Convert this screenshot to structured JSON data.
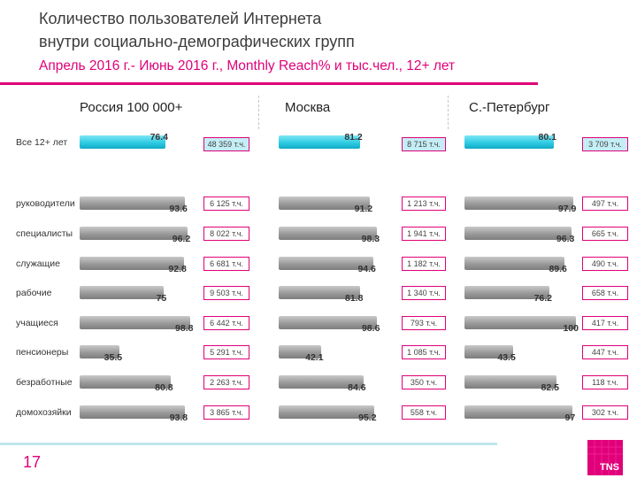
{
  "title_line1": "Количество пользователей Интернета",
  "title_line2": "внутри социально-демографических групп",
  "subtitle": "Апрель 2016 г.- Июнь 2016 г., Monthly Reach% и тыс.чел., 12+ лет",
  "page_number": "17",
  "logo_text": "TNS",
  "colors": {
    "accent": "#e0007a",
    "highlight_bar": "#2fcbe3",
    "bar": "#9a9a9a"
  },
  "chart_data": {
    "type": "bar",
    "categories": [
      "Все 12+ лет",
      "руководители",
      "специалисты",
      "служащие",
      "рабочие",
      "учащиеся",
      "пенсионеры",
      "безработные",
      "домохозяйки"
    ],
    "ylim": [
      0,
      100
    ],
    "series": [
      {
        "name": "Россия 100 000+",
        "values": [
          76.4,
          93.6,
          96.2,
          92.8,
          75,
          98.8,
          35.5,
          80.8,
          93.8
        ],
        "values_text": [
          "76.4",
          "93.6",
          "96.2",
          "92.8",
          "75",
          "98.8",
          "35.5",
          "80.8",
          "93.8"
        ],
        "counts": [
          "48 359 т.ч.",
          "6 125 т.ч.",
          "8 022 т.ч.",
          "6 681 т.ч.",
          "9 503 т.ч.",
          "6 442 т.ч.",
          "5 291 т.ч.",
          "2 263 т.ч.",
          "3 865 т.ч."
        ]
      },
      {
        "name": "Москва",
        "values": [
          81.2,
          91.2,
          98.3,
          94.6,
          81.8,
          98.6,
          42.1,
          84.6,
          95.2
        ],
        "values_text": [
          "81.2",
          "91.2",
          "98.3",
          "94.6",
          "81.8",
          "98.6",
          "42.1",
          "84.6",
          "95.2"
        ],
        "counts": [
          "8 715 т.ч.",
          "1 213 т.ч.",
          "1 941 т.ч.",
          "1 182 т.ч.",
          "1 340 т.ч.",
          "793 т.ч.",
          "1 085 т.ч.",
          "350 т.ч.",
          "558 т.ч."
        ]
      },
      {
        "name": "С.-Петербург",
        "values": [
          80.1,
          97.9,
          96.3,
          89.6,
          76.2,
          100,
          43.5,
          82.5,
          97
        ],
        "values_text": [
          "80.1",
          "97.9",
          "96.3",
          "89.6",
          "76.2",
          "100",
          "43.5",
          "82.5",
          "97"
        ],
        "counts": [
          "3 709 т.ч.",
          "497 т.ч.",
          "665 т.ч.",
          "490 т.ч.",
          "658 т.ч.",
          "417 т.ч.",
          "447 т.ч.",
          "118 т.ч.",
          "302 т.ч."
        ]
      }
    ]
  }
}
